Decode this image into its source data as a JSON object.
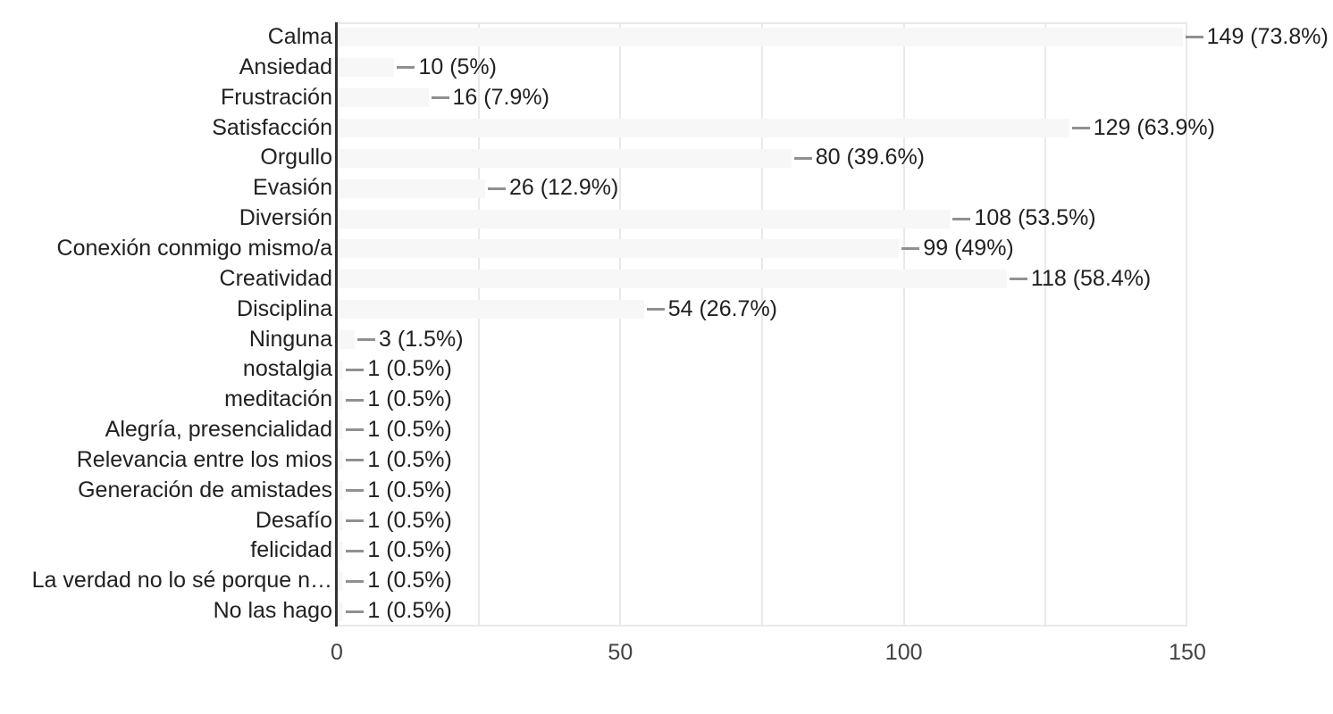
{
  "chart_data": {
    "type": "bar",
    "orientation": "horizontal",
    "title": "",
    "xlabel": "",
    "ylabel": "",
    "xlim": [
      0,
      150
    ],
    "x_ticks": [
      "0",
      "50",
      "100",
      "150"
    ],
    "grid_interval": 25,
    "grid": "on",
    "legend": "none",
    "categories": [
      "Calma",
      "Ansiedad",
      "Frustración",
      "Satisfacción",
      "Orgullo",
      "Evasión",
      "Diversión",
      "Conexión conmigo mismo/a",
      "Creatividad",
      "Disciplina",
      "Ninguna",
      "nostalgia",
      "meditación",
      "Alegría, presencialidad",
      "Relevancia entre los mios",
      "Generación de amistades",
      "Desafío",
      "felicidad",
      "La verdad no lo sé porque n…",
      "No las hago"
    ],
    "values": [
      149,
      10,
      16,
      129,
      80,
      26,
      108,
      99,
      118,
      54,
      3,
      1,
      1,
      1,
      1,
      1,
      1,
      1,
      1,
      1
    ],
    "value_labels": [
      "149 (73.8%)",
      "10 (5%)",
      "16 (7.9%)",
      "129 (63.9%)",
      "80 (39.6%)",
      "26 (12.9%)",
      "108 (53.5%)",
      "99 (49%)",
      "118 (58.4%)",
      "54 (26.7%)",
      "3 (1.5%)",
      "1 (0.5%)",
      "1 (0.5%)",
      "1 (0.5%)",
      "1 (0.5%)",
      "1 (0.5%)",
      "1 (0.5%)",
      "1 (0.5%)",
      "1 (0.5%)",
      "1 (0.5%)"
    ],
    "colors": {
      "background": "#ffffff",
      "bar_fill": "#f7f7f7",
      "gridline": "#e9e9e9",
      "axis_line": "#333333",
      "leader_dash": "#909090",
      "label_text": "#212121",
      "tick_text": "#424242"
    }
  }
}
